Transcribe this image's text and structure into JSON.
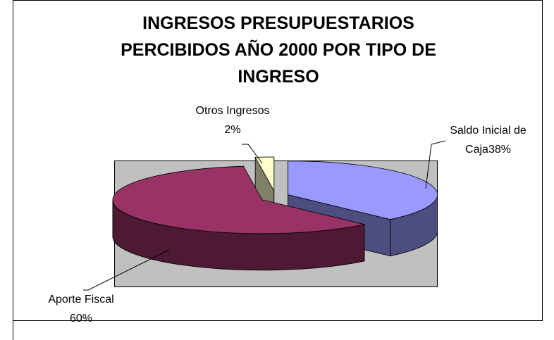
{
  "chart_data": {
    "type": "pie3d",
    "title": "INGRESOS PRESUPUESTARIOS PERCIBIDOS AÑO 2000 POR TIPO DE INGRESO",
    "categories": [
      "Saldo Inicial de Caja",
      "Aporte Fiscal",
      "Otros Ingresos"
    ],
    "values": [
      38,
      60,
      2
    ],
    "value_labels": [
      "38%",
      "60%",
      "2%"
    ],
    "colors": [
      "#9999ff",
      "#993366",
      "#ffffcc"
    ],
    "side_colors": [
      "#4d4d80",
      "#4d1933",
      "#808066"
    ]
  }
}
